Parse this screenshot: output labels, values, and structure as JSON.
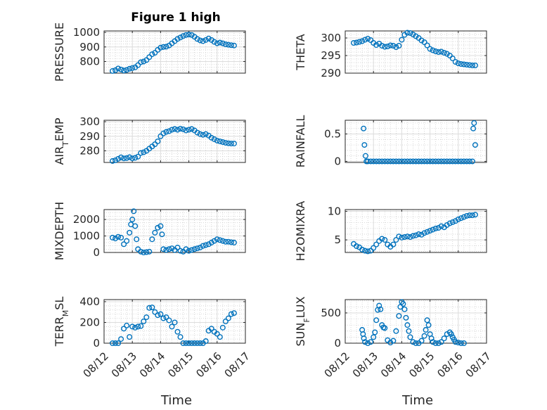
{
  "figure_title": "Figure 1 high",
  "marker_color": "#0072BD",
  "x_tick_labels": [
    "08/12",
    "08/13",
    "08/14",
    "08/15",
    "08/16",
    "08/17"
  ],
  "xlabel": "Time",
  "chart_data": [
    {
      "type": "scatter",
      "title": "Figure 1 high",
      "ylabel": "PRESSURE",
      "ylim": [
        720,
        1010
      ],
      "yticks": [
        800,
        900,
        1000
      ],
      "xlim": [
        0,
        5
      ],
      "grid": true,
      "x": [
        0.3,
        0.4,
        0.5,
        0.6,
        0.7,
        0.8,
        0.9,
        1.0,
        1.1,
        1.2,
        1.3,
        1.4,
        1.5,
        1.6,
        1.7,
        1.8,
        1.9,
        2.0,
        2.1,
        2.2,
        2.3,
        2.4,
        2.5,
        2.6,
        2.7,
        2.8,
        2.9,
        3.0,
        3.1,
        3.2,
        3.3,
        3.4,
        3.5,
        3.6,
        3.7,
        3.8,
        3.9,
        4.0,
        4.1,
        4.2,
        4.3,
        4.4,
        4.5,
        4.6
      ],
      "y": [
        735,
        740,
        752,
        745,
        738,
        742,
        750,
        755,
        760,
        775,
        795,
        800,
        810,
        830,
        850,
        860,
        880,
        895,
        900,
        902,
        910,
        925,
        940,
        955,
        965,
        975,
        982,
        985,
        982,
        970,
        955,
        945,
        940,
        948,
        958,
        948,
        935,
        925,
        930,
        925,
        918,
        915,
        912,
        910
      ]
    },
    {
      "type": "scatter",
      "ylabel": "THETA",
      "ylim": [
        290,
        302
      ],
      "yticks": [
        290,
        295,
        300
      ],
      "xlim": [
        0,
        5
      ],
      "grid": true,
      "x": [
        0.3,
        0.4,
        0.5,
        0.6,
        0.7,
        0.8,
        0.9,
        1.0,
        1.1,
        1.2,
        1.3,
        1.4,
        1.5,
        1.6,
        1.7,
        1.8,
        1.9,
        2.0,
        2.1,
        2.2,
        2.3,
        2.4,
        2.5,
        2.6,
        2.7,
        2.8,
        2.9,
        3.0,
        3.1,
        3.2,
        3.3,
        3.4,
        3.5,
        3.6,
        3.7,
        3.8,
        3.9,
        4.0,
        4.1,
        4.2,
        4.3,
        4.4,
        4.5,
        4.6
      ],
      "y": [
        298.6,
        298.7,
        298.9,
        299.1,
        299.5,
        299.8,
        299.4,
        298.6,
        298.0,
        298.4,
        297.8,
        297.5,
        297.6,
        297.9,
        297.8,
        297.4,
        297.8,
        299.5,
        300.9,
        301.5,
        301.4,
        301.0,
        300.5,
        300.0,
        299.3,
        298.8,
        297.9,
        296.9,
        296.5,
        296.2,
        296.0,
        296.1,
        295.8,
        295.5,
        295.0,
        294.2,
        293.2,
        292.8,
        292.6,
        292.5,
        292.4,
        292.3,
        292.2,
        292.2
      ]
    },
    {
      "type": "scatter",
      "ylabel": "AIRTEMP",
      "ylim": [
        272,
        301
      ],
      "yticks": [
        280,
        290,
        300
      ],
      "xlim": [
        0,
        5
      ],
      "grid": true,
      "x": [
        0.3,
        0.4,
        0.5,
        0.6,
        0.7,
        0.8,
        0.9,
        1.0,
        1.1,
        1.2,
        1.3,
        1.4,
        1.5,
        1.6,
        1.7,
        1.8,
        1.9,
        2.0,
        2.1,
        2.2,
        2.3,
        2.4,
        2.5,
        2.6,
        2.7,
        2.8,
        2.9,
        3.0,
        3.1,
        3.2,
        3.3,
        3.4,
        3.5,
        3.6,
        3.7,
        3.8,
        3.9,
        4.0,
        4.1,
        4.2,
        4.3,
        4.4,
        4.5,
        4.6
      ],
      "y": [
        273.0,
        273.5,
        274.5,
        275.5,
        274.8,
        275.0,
        275.6,
        274.8,
        275.2,
        276.0,
        278.5,
        279.0,
        280.0,
        281.5,
        283.0,
        284.5,
        286.5,
        290.0,
        292.0,
        293.0,
        293.5,
        294.5,
        295.0,
        294.5,
        295.2,
        294.8,
        294.0,
        294.5,
        295.0,
        294.0,
        292.5,
        291.5,
        291.0,
        291.5,
        290.5,
        289.0,
        288.0,
        287.0,
        286.5,
        286.0,
        285.5,
        285.2,
        285.0,
        285.0
      ]
    },
    {
      "type": "scatter",
      "ylabel": "RAINFALL",
      "ylim": [
        -0.02,
        0.75
      ],
      "yticks": [
        0,
        0.5
      ],
      "xlim": [
        0,
        5
      ],
      "grid": true,
      "x": [
        0.65,
        0.68,
        0.72,
        0.75,
        0.8,
        0.9,
        1.0,
        1.1,
        1.2,
        1.3,
        1.4,
        1.5,
        1.6,
        1.7,
        1.8,
        1.9,
        2.0,
        2.1,
        2.2,
        2.3,
        2.4,
        2.5,
        2.6,
        2.7,
        2.8,
        2.9,
        3.0,
        3.1,
        3.2,
        3.3,
        3.4,
        3.5,
        3.6,
        3.7,
        3.8,
        3.9,
        4.0,
        4.1,
        4.2,
        4.3,
        4.4,
        4.5,
        4.53,
        4.56,
        4.6
      ],
      "y": [
        0.6,
        0.3,
        0.1,
        0.0,
        0.0,
        0.0,
        0.0,
        0.0,
        0.0,
        0.0,
        0.0,
        0.0,
        0.0,
        0.0,
        0.0,
        0.0,
        0.0,
        0.0,
        0.0,
        0.0,
        0.0,
        0.0,
        0.0,
        0.0,
        0.0,
        0.0,
        0.0,
        0.0,
        0.0,
        0.0,
        0.0,
        0.0,
        0.0,
        0.0,
        0.0,
        0.0,
        0.0,
        0.0,
        0.0,
        0.0,
        0.0,
        0.0,
        0.6,
        0.7,
        0.3
      ]
    },
    {
      "type": "scatter",
      "ylabel": "MIXDEPTH",
      "ylim": [
        0,
        2600
      ],
      "yticks": [
        0,
        1000,
        2000
      ],
      "xlim": [
        0,
        5
      ],
      "grid": true,
      "x": [
        0.3,
        0.4,
        0.5,
        0.6,
        0.7,
        0.8,
        0.9,
        0.95,
        1.0,
        1.05,
        1.1,
        1.15,
        1.2,
        1.3,
        1.4,
        1.5,
        1.6,
        1.7,
        1.8,
        1.9,
        2.0,
        2.05,
        2.1,
        2.2,
        2.3,
        2.4,
        2.5,
        2.6,
        2.7,
        2.8,
        2.9,
        3.0,
        3.1,
        3.2,
        3.3,
        3.4,
        3.5,
        3.6,
        3.7,
        3.8,
        3.9,
        4.0,
        4.1,
        4.2,
        4.3,
        4.4,
        4.5,
        4.6
      ],
      "y": [
        900,
        850,
        950,
        900,
        500,
        700,
        1200,
        1700,
        2000,
        2500,
        1600,
        800,
        200,
        50,
        0,
        20,
        50,
        800,
        1200,
        1500,
        1600,
        1100,
        200,
        150,
        200,
        250,
        150,
        300,
        100,
        50,
        200,
        100,
        150,
        200,
        250,
        300,
        400,
        450,
        500,
        600,
        700,
        800,
        750,
        700,
        650,
        650,
        620,
        600
      ]
    },
    {
      "type": "scatter",
      "ylabel": "H2OMIXRA",
      "ylim": [
        2.8,
        10.3
      ],
      "yticks": [
        5,
        10
      ],
      "xlim": [
        0,
        5
      ],
      "grid": true,
      "x": [
        0.3,
        0.4,
        0.5,
        0.6,
        0.7,
        0.8,
        0.9,
        1.0,
        1.1,
        1.2,
        1.3,
        1.4,
        1.5,
        1.6,
        1.7,
        1.8,
        1.9,
        2.0,
        2.1,
        2.2,
        2.3,
        2.4,
        2.5,
        2.6,
        2.7,
        2.8,
        2.9,
        3.0,
        3.1,
        3.2,
        3.3,
        3.4,
        3.5,
        3.6,
        3.7,
        3.8,
        3.9,
        4.0,
        4.1,
        4.2,
        4.3,
        4.4,
        4.5,
        4.6
      ],
      "y": [
        4.3,
        3.9,
        3.7,
        3.3,
        3.1,
        3.0,
        3.1,
        3.6,
        4.2,
        4.8,
        5.2,
        5.0,
        4.2,
        3.8,
        4.2,
        5.0,
        5.6,
        5.4,
        5.5,
        5.6,
        5.5,
        5.7,
        5.8,
        6.0,
        5.9,
        6.2,
        6.4,
        6.6,
        6.8,
        7.0,
        7.1,
        7.4,
        7.2,
        7.6,
        7.9,
        8.1,
        8.3,
        8.6,
        8.8,
        9.0,
        9.2,
        9.3,
        9.3,
        9.4
      ]
    },
    {
      "type": "scatter",
      "ylabel": "TERRMSL",
      "ylim": [
        0,
        420
      ],
      "yticks": [
        0,
        200,
        400
      ],
      "xlim": [
        0,
        5
      ],
      "grid": true,
      "x": [
        0.3,
        0.4,
        0.5,
        0.6,
        0.7,
        0.8,
        0.9,
        1.0,
        1.1,
        1.2,
        1.3,
        1.4,
        1.5,
        1.6,
        1.7,
        1.8,
        1.9,
        2.0,
        2.1,
        2.2,
        2.3,
        2.4,
        2.5,
        2.6,
        2.7,
        2.8,
        2.9,
        3.0,
        3.1,
        3.2,
        3.3,
        3.4,
        3.5,
        3.6,
        3.7,
        3.8,
        3.9,
        4.0,
        4.1,
        4.2,
        4.3,
        4.4,
        4.5,
        4.6
      ],
      "y": [
        0,
        0,
        0,
        40,
        140,
        170,
        60,
        160,
        150,
        160,
        165,
        210,
        250,
        340,
        345,
        300,
        270,
        280,
        240,
        250,
        220,
        160,
        200,
        110,
        60,
        0,
        0,
        0,
        0,
        0,
        0,
        0,
        0,
        20,
        120,
        140,
        110,
        90,
        60,
        150,
        210,
        240,
        280,
        290
      ]
    },
    {
      "type": "scatter",
      "ylabel": "SUNFLUX",
      "ylim": [
        0,
        720
      ],
      "yticks": [
        0,
        500
      ],
      "xlim": [
        0,
        5
      ],
      "grid": true,
      "x": [
        0.6,
        0.63,
        0.66,
        0.7,
        0.8,
        0.9,
        1.0,
        1.05,
        1.1,
        1.15,
        1.2,
        1.25,
        1.3,
        1.35,
        1.4,
        1.5,
        1.6,
        1.7,
        1.8,
        1.9,
        1.95,
        2.0,
        2.05,
        2.1,
        2.15,
        2.2,
        2.25,
        2.3,
        2.4,
        2.5,
        2.6,
        2.7,
        2.8,
        2.85,
        2.9,
        2.95,
        3.0,
        3.05,
        3.1,
        3.2,
        3.3,
        3.4,
        3.5,
        3.6,
        3.7,
        3.75,
        3.8,
        3.85,
        3.9,
        4.0,
        4.1,
        4.2
      ],
      "y": [
        220,
        150,
        80,
        20,
        0,
        20,
        100,
        180,
        380,
        550,
        620,
        560,
        300,
        260,
        250,
        50,
        10,
        40,
        200,
        450,
        600,
        680,
        650,
        560,
        420,
        300,
        200,
        100,
        20,
        0,
        0,
        40,
        120,
        220,
        380,
        300,
        150,
        80,
        20,
        0,
        0,
        20,
        80,
        150,
        180,
        150,
        100,
        60,
        20,
        10,
        0,
        0
      ]
    }
  ],
  "ylabels_display": [
    {
      "main": "PRESSURE",
      "pre": "",
      "sub": "",
      "post": ""
    },
    {
      "main": "THETA",
      "pre": "",
      "sub": "",
      "post": ""
    },
    {
      "main": "",
      "pre": "AIR",
      "sub": "T",
      "post": "EMP"
    },
    {
      "main": "RAINFALL",
      "pre": "",
      "sub": "",
      "post": ""
    },
    {
      "main": "MIXDEPTH",
      "pre": "",
      "sub": "",
      "post": ""
    },
    {
      "main": "H2OMIXRA",
      "pre": "",
      "sub": "",
      "post": ""
    },
    {
      "main": "",
      "pre": "TERR",
      "sub": "M",
      "post": "SL"
    },
    {
      "main": "",
      "pre": "SUN",
      "sub": "F",
      "post": "LUX"
    }
  ]
}
